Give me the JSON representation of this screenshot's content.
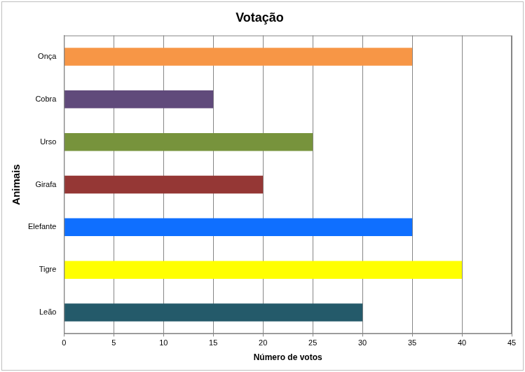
{
  "chart_data": {
    "type": "bar",
    "title": "Votação",
    "orientation": "horizontal",
    "x_label": "Número de votos",
    "y_label": "Animais",
    "categories": [
      "Onça",
      "Cobra",
      "Urso",
      "Girafa",
      "Elefante",
      "Tigre",
      "Leão"
    ],
    "values": [
      35,
      15,
      25,
      20,
      35,
      40,
      30
    ],
    "colors": [
      "#f79646",
      "#604a7b",
      "#77933c",
      "#953735",
      "#0f6fff",
      "#ffff00",
      "#245a6a"
    ],
    "xlim": [
      0,
      45
    ],
    "xticks": [
      0,
      5,
      10,
      15,
      20,
      25,
      30,
      35,
      40,
      45
    ],
    "grid": true
  }
}
